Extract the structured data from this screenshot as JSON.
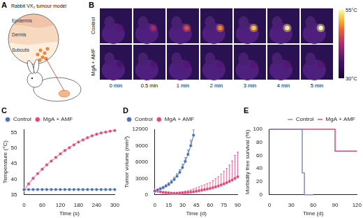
{
  "panel_a": {
    "panel": "A",
    "title": "Rabbit VX₂ tumour model",
    "layers": [
      "Epidermis",
      "Dermis",
      "Subcutis"
    ]
  },
  "panel_b": {
    "panel": "B",
    "rows": [
      "Control",
      "MgA + AMF"
    ],
    "times": [
      "0 min",
      "0.5 min",
      "1 min",
      "2 min",
      "3 min",
      "4 min",
      "5 min"
    ],
    "spot_temperature": [
      [
        37,
        42,
        46,
        49,
        52,
        54,
        55
      ],
      [
        36,
        36.5,
        37,
        37,
        37,
        37,
        37
      ]
    ],
    "colorbar": {
      "range": [
        30,
        55
      ],
      "ticks": [
        {
          "value": 55,
          "label": "55°C"
        },
        {
          "value": 30,
          "label": "30°C"
        }
      ]
    }
  },
  "chart_data": [
    {
      "panel": "C",
      "type": "line",
      "x_label": "Time (s)",
      "y_label": "Temperature (°C)",
      "x": [
        0,
        15,
        30,
        45,
        60,
        75,
        90,
        105,
        120,
        135,
        150,
        165,
        180,
        195,
        210,
        225,
        240,
        255,
        270,
        285,
        300
      ],
      "series": [
        {
          "name": "Control",
          "color": "#4a6fb5",
          "marker": "circle",
          "values": [
            36.7,
            36.7,
            36.7,
            36.7,
            36.7,
            36.7,
            36.7,
            36.7,
            36.7,
            36.7,
            36.7,
            36.7,
            36.7,
            36.7,
            36.7,
            36.7,
            36.7,
            36.7,
            36.7,
            36.7,
            36.7
          ]
        },
        {
          "name": "MgA + AMF",
          "color": "#e0457b",
          "marker": "circle",
          "values": [
            36.5,
            38.5,
            40.3,
            41.8,
            43.2,
            44.6,
            45.8,
            47,
            48.1,
            49.2,
            50.1,
            51,
            51.9,
            52.6,
            53.3,
            53.9,
            54.4,
            54.8,
            55.1,
            55.4,
            55.6
          ]
        }
      ],
      "xlim": [
        0,
        300
      ],
      "xticks": [
        0,
        60,
        120,
        180,
        240,
        300
      ],
      "ylim": [
        35,
        56
      ],
      "yticks": [
        35,
        40,
        45,
        50,
        55
      ],
      "grid": false,
      "legend": "upper left"
    },
    {
      "panel": "D",
      "type": "line",
      "x_label": "Time (d)",
      "y_label": "Tumor volume (mm³)",
      "series": [
        {
          "name": "Control",
          "color": "#4a6fb5",
          "marker": "circle",
          "x": [
            0,
            3,
            6,
            9,
            12,
            15,
            18,
            21,
            24,
            27,
            30,
            33,
            36,
            39,
            42
          ],
          "values": [
            700,
            900,
            1100,
            1300,
            1600,
            1900,
            2300,
            2800,
            3400,
            4100,
            5000,
            6100,
            7400,
            9000,
            10900
          ],
          "errors": [
            100,
            150,
            200,
            200,
            250,
            300,
            350,
            400,
            450,
            500,
            600,
            700,
            800,
            1000,
            1000
          ]
        },
        {
          "name": "MgA + AMF",
          "color": "#e0457b",
          "marker": "circle",
          "x": [
            0,
            3,
            6,
            9,
            12,
            15,
            18,
            21,
            24,
            27,
            30,
            33,
            36,
            39,
            42,
            45,
            48,
            51,
            54,
            57,
            60,
            63,
            66,
            69,
            72,
            75,
            78,
            81,
            84,
            87,
            90
          ],
          "values": [
            700,
            650,
            550,
            450,
            400,
            350,
            300,
            300,
            300,
            320,
            350,
            400,
            450,
            500,
            550,
            650,
            750,
            850,
            950,
            1050,
            1150,
            1300,
            1450,
            1600,
            1800,
            2000,
            2200,
            2450,
            2700,
            3000,
            3300
          ],
          "errors": [
            100,
            100,
            100,
            100,
            100,
            100,
            100,
            100,
            100,
            150,
            200,
            250,
            300,
            400,
            500,
            600,
            700,
            800,
            900,
            1000,
            1100,
            1300,
            1500,
            1700,
            2000,
            2300,
            2600,
            3000,
            3500,
            4200,
            4500
          ]
        }
      ],
      "xlim": [
        0,
        90
      ],
      "xticks": [
        0,
        15,
        30,
        45,
        60,
        75,
        90
      ],
      "ylim": [
        0,
        12000
      ],
      "yticks": [
        0,
        3000,
        6000,
        9000,
        12000
      ],
      "grid": false,
      "legend": "upper left"
    },
    {
      "panel": "E",
      "type": "step",
      "x_label": "Time (d)",
      "y_label": "Morbidity free survival (%)",
      "series": [
        {
          "name": "Control",
          "color": "#8390aa",
          "marker": "none",
          "x": [
            0,
            45,
            48,
            60
          ],
          "values": [
            100,
            33.3,
            0,
            0
          ]
        },
        {
          "name": "MgA + AMF",
          "color": "#e0457b",
          "marker": "none",
          "x": [
            0,
            90,
            120
          ],
          "values": [
            100,
            66.7,
            66.7
          ]
        }
      ],
      "xlim": [
        0,
        120
      ],
      "xticks": [
        0,
        30,
        60,
        90,
        120
      ],
      "ylim": [
        0,
        100
      ],
      "yticks": [
        0,
        20,
        40,
        60,
        80,
        100
      ],
      "grid": false,
      "legend": "upper right"
    }
  ]
}
